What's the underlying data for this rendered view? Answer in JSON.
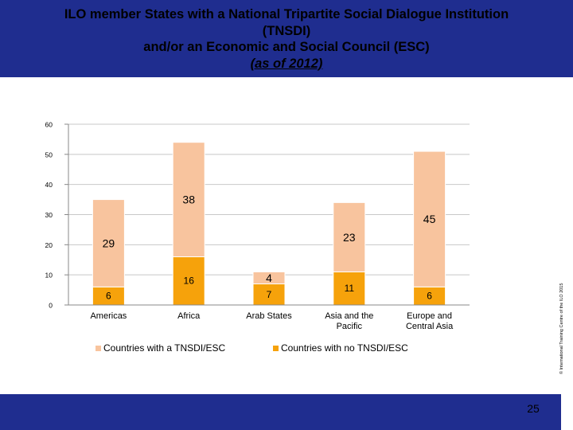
{
  "header": {
    "title_lines": [
      "ILO member States with a National Tripartite Social Dialogue Institution",
      "(TNSDI)",
      "and/or an Economic and Social Council (ESC)",
      "(as of 2012)"
    ]
  },
  "footer": {
    "page_number": "25"
  },
  "copyright": "© International Training Centre of the ILO 2015",
  "colors": {
    "header_bg": "#1f2d8f",
    "tnsdi": "#f8c49e",
    "no_tnsdi": "#f6a20b",
    "gridline": "#c8c8c8"
  },
  "chart_data": {
    "type": "bar",
    "stacked": true,
    "title": "ILO member States with a National Tripartite Social Dialogue Institution (TNSDI) and/or an Economic and Social Council (ESC) (as of 2012)",
    "xlabel": "",
    "ylabel": "",
    "ylim": [
      0,
      60
    ],
    "yticks": [
      0,
      10,
      20,
      30,
      40,
      50,
      60
    ],
    "grid": true,
    "legend_position": "bottom",
    "categories": [
      "Americas",
      "Africa",
      "Arab States",
      "Asia and the Pacific",
      "Europe and Central Asia"
    ],
    "category_lines": [
      [
        "Americas"
      ],
      [
        "Africa"
      ],
      [
        "Arab States"
      ],
      [
        "Asia and the",
        "Pacific"
      ],
      [
        "Europe and",
        "Central Asia"
      ]
    ],
    "series": [
      {
        "name": "Countries with no TNSDI/ESC",
        "color_key": "no_tnsdi",
        "values": [
          6,
          16,
          7,
          11,
          6
        ]
      },
      {
        "name": "Countries with a TNSDI/ESC",
        "color_key": "tnsdi",
        "values": [
          29,
          38,
          4,
          23,
          45
        ]
      }
    ],
    "legend": [
      "Countries with a TNSDI/ESC",
      "Countries with no TNSDI/ESC"
    ]
  }
}
